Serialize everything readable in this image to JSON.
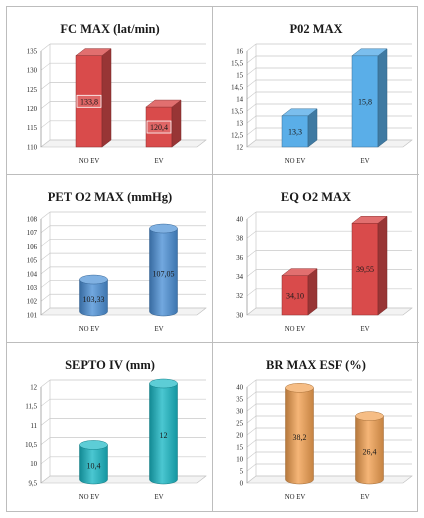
{
  "chart_data": [
    {
      "type": "bar",
      "title": "FC MAX (lat/min)",
      "shape": "box",
      "categories": [
        "NO EV",
        "EV"
      ],
      "values": [
        133.8,
        120.4
      ],
      "value_labels": [
        "133,8",
        "120,4"
      ],
      "ylim": [
        110,
        135
      ],
      "yticks": [
        110,
        115,
        120,
        125,
        130,
        135
      ],
      "ytick_labels": [
        "110",
        "115",
        "120",
        "125",
        "130",
        "135"
      ],
      "label_style": "boxed",
      "color": "#d94b4b"
    },
    {
      "type": "bar",
      "title": "P02 MAX",
      "shape": "box",
      "categories": [
        "NO EV",
        "EV"
      ],
      "values": [
        13.3,
        15.8
      ],
      "value_labels": [
        "13,3",
        "15,8"
      ],
      "ylim": [
        12,
        16
      ],
      "yticks": [
        12,
        12.5,
        13,
        13.5,
        14,
        14.5,
        15,
        15.5,
        16
      ],
      "ytick_labels": [
        "12",
        "12,5",
        "13",
        "13,5",
        "14",
        "14,5",
        "15",
        "15,5",
        "16"
      ],
      "label_style": "plain",
      "color": "#5aaee8"
    },
    {
      "type": "bar",
      "title": "PET O2 MAX  (mmHg)",
      "shape": "cylinder",
      "categories": [
        "NO EV",
        "EV"
      ],
      "values": [
        103.33,
        107.05
      ],
      "value_labels": [
        "103,33",
        "107,05"
      ],
      "ylim": [
        101,
        108
      ],
      "yticks": [
        101,
        102,
        103,
        104,
        105,
        106,
        107,
        108
      ],
      "ytick_labels": [
        "101",
        "102",
        "103",
        "104",
        "105",
        "106",
        "107",
        "108"
      ],
      "label_style": "plain",
      "color": "#4a8fd6"
    },
    {
      "type": "bar",
      "title": "EQ O2 MAX",
      "shape": "box",
      "categories": [
        "NO EV",
        "EV"
      ],
      "values": [
        34.1,
        39.55
      ],
      "value_labels": [
        "34,10",
        "39,55"
      ],
      "ylim": [
        30,
        40
      ],
      "yticks": [
        30,
        32,
        34,
        36,
        38,
        40
      ],
      "ytick_labels": [
        "30",
        "32",
        "34",
        "36",
        "38",
        "40"
      ],
      "label_style": "plain",
      "color": "#d94b4b"
    },
    {
      "type": "bar",
      "title": "SEPTO IV (mm)",
      "shape": "cylinder",
      "categories": [
        "NO EV",
        "EV"
      ],
      "values": [
        10.4,
        12
      ],
      "value_labels": [
        "10,4",
        "12"
      ],
      "ylim": [
        9.5,
        12
      ],
      "yticks": [
        9.5,
        10,
        10.5,
        11,
        11.5,
        12
      ],
      "ytick_labels": [
        "9,5",
        "10",
        "10,5",
        "11",
        "11,5",
        "12"
      ],
      "label_style": "plain",
      "color": "#18b7c4"
    },
    {
      "type": "bar",
      "title": "BR MAX ESF (%)",
      "shape": "cylinder",
      "categories": [
        "NO EV",
        "EV"
      ],
      "values": [
        38.2,
        26.4
      ],
      "value_labels": [
        "38,2",
        "26,4"
      ],
      "ylim": [
        0,
        40
      ],
      "yticks": [
        0,
        5,
        10,
        15,
        20,
        25,
        30,
        35,
        40
      ],
      "ytick_labels": [
        "0",
        "5",
        "10",
        "15",
        "20",
        "25",
        "30",
        "35",
        "40"
      ],
      "label_style": "plain",
      "color": "#f2a050"
    }
  ]
}
